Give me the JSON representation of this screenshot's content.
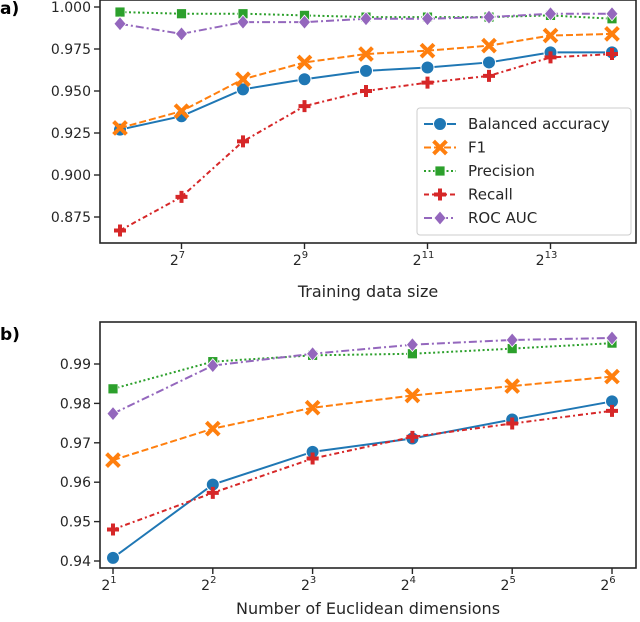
{
  "chart_data": [
    {
      "type": "line",
      "panel_label": "a)",
      "xlabel": "Training data size",
      "ylabel": "",
      "x_scale": "log2",
      "x_exponents": [
        6,
        7,
        8,
        9,
        10,
        11,
        12,
        13,
        14
      ],
      "x_tick_exponents": [
        7,
        9,
        11,
        13
      ],
      "x_tick_labels": [
        "2",
        "2",
        "2",
        "2"
      ],
      "x_tick_sups": [
        "7",
        "9",
        "11",
        "13"
      ],
      "ylim": [
        0.862,
        1.0
      ],
      "y_ticks": [
        1.0,
        0.975,
        0.95,
        0.925,
        0.9,
        0.875
      ],
      "y_tick_labels": [
        "1.000",
        "0.975",
        "0.950",
        "0.925",
        "0.900",
        "0.875"
      ],
      "grid": false,
      "legend": "lower-right",
      "series": [
        {
          "name": "Balanced accuracy",
          "color": "#1f77b4",
          "marker": "circle",
          "linestyle": "solid",
          "values": [
            0.927,
            0.935,
            0.951,
            0.957,
            0.962,
            0.964,
            0.967,
            0.973,
            0.973
          ]
        },
        {
          "name": "F1",
          "color": "#ff7f0e",
          "marker": "x",
          "linestyle": "dashed",
          "values": [
            0.928,
            0.938,
            0.957,
            0.967,
            0.972,
            0.974,
            0.977,
            0.983,
            0.984
          ]
        },
        {
          "name": "Precision",
          "color": "#2ca02c",
          "marker": "square",
          "linestyle": "dotted",
          "values": [
            0.997,
            0.996,
            0.996,
            0.995,
            0.994,
            0.994,
            0.994,
            0.995,
            0.993
          ]
        },
        {
          "name": "Recall",
          "color": "#d62728",
          "marker": "plus",
          "linestyle": "dashdotdot",
          "values": [
            0.867,
            0.887,
            0.92,
            0.941,
            0.95,
            0.955,
            0.959,
            0.97,
            0.972
          ]
        },
        {
          "name": "ROC AUC",
          "color": "#9467bd",
          "marker": "diamond",
          "linestyle": "dashdot",
          "values": [
            0.99,
            0.984,
            0.991,
            0.991,
            0.993,
            0.993,
            0.994,
            0.996,
            0.996
          ]
        }
      ]
    },
    {
      "type": "line",
      "panel_label": "b)",
      "xlabel": "Number of Euclidean dimensions",
      "ylabel": "",
      "x_scale": "log2",
      "x_exponents": [
        1,
        2,
        3,
        4,
        5,
        6
      ],
      "x_tick_exponents": [
        1,
        2,
        3,
        4,
        5,
        6
      ],
      "x_tick_labels": [
        "2",
        "2",
        "2",
        "2",
        "2",
        "2"
      ],
      "x_tick_sups": [
        "1",
        "2",
        "3",
        "4",
        "5",
        "6"
      ],
      "ylim": [
        0.9375,
        0.9995
      ],
      "y_ticks": [
        0.99,
        0.98,
        0.97,
        0.96,
        0.95,
        0.94
      ],
      "y_tick_labels": [
        "0.99",
        "0.98",
        "0.97",
        "0.96",
        "0.95",
        "0.94"
      ],
      "grid": false,
      "series": [
        {
          "name": "Balanced accuracy",
          "color": "#1f77b4",
          "marker": "circle",
          "linestyle": "solid",
          "values": [
            0.9408,
            0.9594,
            0.9677,
            0.9711,
            0.9759,
            0.9805
          ]
        },
        {
          "name": "F1",
          "color": "#ff7f0e",
          "marker": "x",
          "linestyle": "dashed",
          "values": [
            0.9656,
            0.9736,
            0.9789,
            0.982,
            0.9844,
            0.9868
          ]
        },
        {
          "name": "Precision",
          "color": "#2ca02c",
          "marker": "square",
          "linestyle": "dotted",
          "values": [
            0.9837,
            0.9906,
            0.9922,
            0.9926,
            0.9939,
            0.9953
          ]
        },
        {
          "name": "Recall",
          "color": "#d62728",
          "marker": "plus",
          "linestyle": "dashdotdot",
          "values": [
            0.948,
            0.9573,
            0.966,
            0.9715,
            0.9749,
            0.9781
          ]
        },
        {
          "name": "ROC AUC",
          "color": "#9467bd",
          "marker": "diamond",
          "linestyle": "dashdot",
          "values": [
            0.9774,
            0.9896,
            0.9926,
            0.9949,
            0.9961,
            0.9966
          ]
        }
      ]
    }
  ]
}
